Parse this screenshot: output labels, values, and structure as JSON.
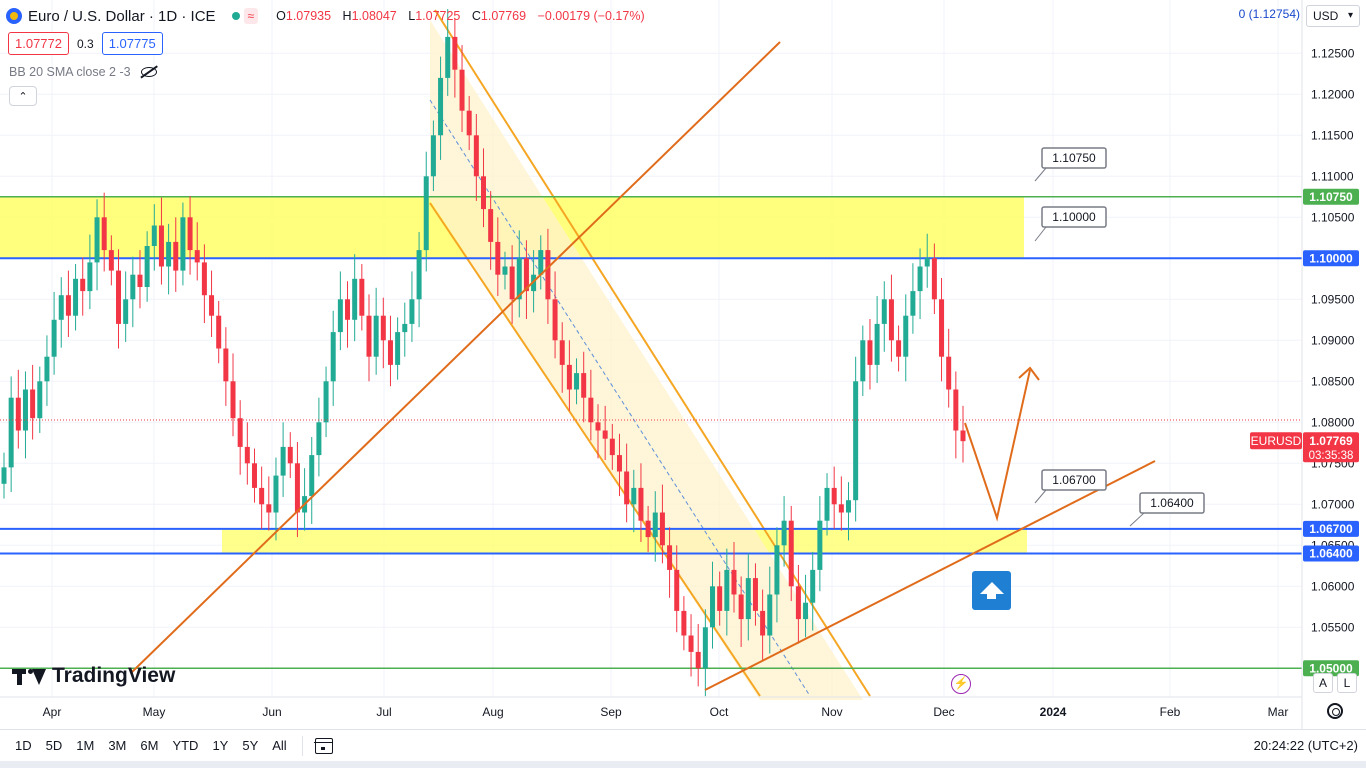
{
  "header": {
    "title": "Euro / U.S. Dollar · 1D · ICE",
    "approx_label": "≈",
    "ohlc": {
      "o_key": "O",
      "o": "1.07935",
      "h_key": "H",
      "h": "1.08047",
      "l_key": "L",
      "l": "1.07725",
      "c_key": "C",
      "c": "1.07769",
      "change": "−0.00179 (−0.17%)"
    }
  },
  "quote": {
    "sell": "1.07772",
    "spread": "0.3",
    "buy": "1.07775"
  },
  "indicator": {
    "label": "BB 20 SMA close 2 -3"
  },
  "currency": "USD",
  "zero_label": "0 (1.12754)",
  "collapse_label": "⌃",
  "watermark": "TradingView",
  "scale_buttons": {
    "auto": "A",
    "log": "L"
  },
  "toolbar": {
    "periods": [
      "1D",
      "5D",
      "1M",
      "3M",
      "6M",
      "YTD",
      "1Y",
      "5Y",
      "All"
    ],
    "clock": "20:24:22 (UTC+2)"
  },
  "colors": {
    "up": "#22ab94",
    "down": "#f23645",
    "zone": "#ffff66",
    "channel": "#f5a623",
    "trend": "#e06c1b",
    "level_blue": "#2962ff",
    "level_green": "#4caf50"
  },
  "chart_data": {
    "type": "candlestick",
    "symbol": "EURUSD",
    "last_price": "1.07769",
    "countdown": "03:35:38",
    "y_ticks": [
      "1.12500",
      "1.12000",
      "1.11500",
      "1.11000",
      "1.10500",
      "1.10000",
      "1.09500",
      "1.09000",
      "1.08500",
      "1.08000",
      "1.07500",
      "1.07000",
      "1.06500",
      "1.06000",
      "1.05500",
      "1.05000"
    ],
    "ylim": [
      1.0465,
      1.1315
    ],
    "x_ticks": [
      "Apr",
      "May",
      "Jun",
      "Jul",
      "Aug",
      "Sep",
      "Oct",
      "Nov",
      "Dec",
      "2024",
      "Feb",
      "Mar"
    ],
    "levels": [
      {
        "value": 1.1075,
        "label": "1.10750",
        "color": "green"
      },
      {
        "value": 1.1,
        "label": "1.10000",
        "color": "blue"
      },
      {
        "value": 1.067,
        "label": "1.06700",
        "color": "blue"
      },
      {
        "value": 1.064,
        "label": "1.06400",
        "color": "blue"
      },
      {
        "value": 1.05,
        "label": "1.05000",
        "color": "green"
      }
    ],
    "callouts": [
      "1.10750",
      "1.10000",
      "1.06700",
      "1.06400"
    ],
    "zones": [
      {
        "from": 1.1,
        "to": 1.1075
      },
      {
        "from": 1.064,
        "to": 1.067
      }
    ],
    "forecast_path": [
      1.0775,
      1.0655,
      1.0845
    ],
    "closes": [
      1.0745,
      1.083,
      1.079,
      1.084,
      1.0805,
      1.085,
      1.088,
      1.0925,
      1.0955,
      1.093,
      1.0975,
      1.096,
      1.0995,
      1.105,
      1.101,
      1.0985,
      1.092,
      1.095,
      1.098,
      1.0965,
      1.1015,
      1.104,
      1.099,
      1.102,
      1.0985,
      1.105,
      1.101,
      1.0995,
      1.0955,
      1.093,
      1.089,
      1.085,
      1.0805,
      1.077,
      1.075,
      1.072,
      1.07,
      1.069,
      1.0735,
      1.077,
      1.075,
      1.069,
      1.071,
      1.076,
      1.08,
      1.085,
      1.091,
      1.095,
      1.0925,
      1.0975,
      1.093,
      1.088,
      1.093,
      1.09,
      1.087,
      1.091,
      1.092,
      1.095,
      1.101,
      1.11,
      1.115,
      1.122,
      1.127,
      1.123,
      1.118,
      1.115,
      1.11,
      1.106,
      1.102,
      1.098,
      1.099,
      1.095,
      1.1,
      1.096,
      1.098,
      1.101,
      1.095,
      1.09,
      1.087,
      1.084,
      1.086,
      1.083,
      1.08,
      1.079,
      1.078,
      1.076,
      1.074,
      1.07,
      1.072,
      1.068,
      1.066,
      1.069,
      1.065,
      1.062,
      1.057,
      1.054,
      1.052,
      1.05,
      1.055,
      1.06,
      1.057,
      1.062,
      1.059,
      1.056,
      1.061,
      1.057,
      1.054,
      1.059,
      1.065,
      1.068,
      1.06,
      1.056,
      1.058,
      1.062,
      1.068,
      1.072,
      1.07,
      1.069,
      1.0705,
      1.085,
      1.09,
      1.087,
      1.092,
      1.095,
      1.09,
      1.088,
      1.093,
      1.096,
      1.099,
      1.1,
      1.095,
      1.088,
      1.084,
      1.079,
      1.0777
    ]
  }
}
